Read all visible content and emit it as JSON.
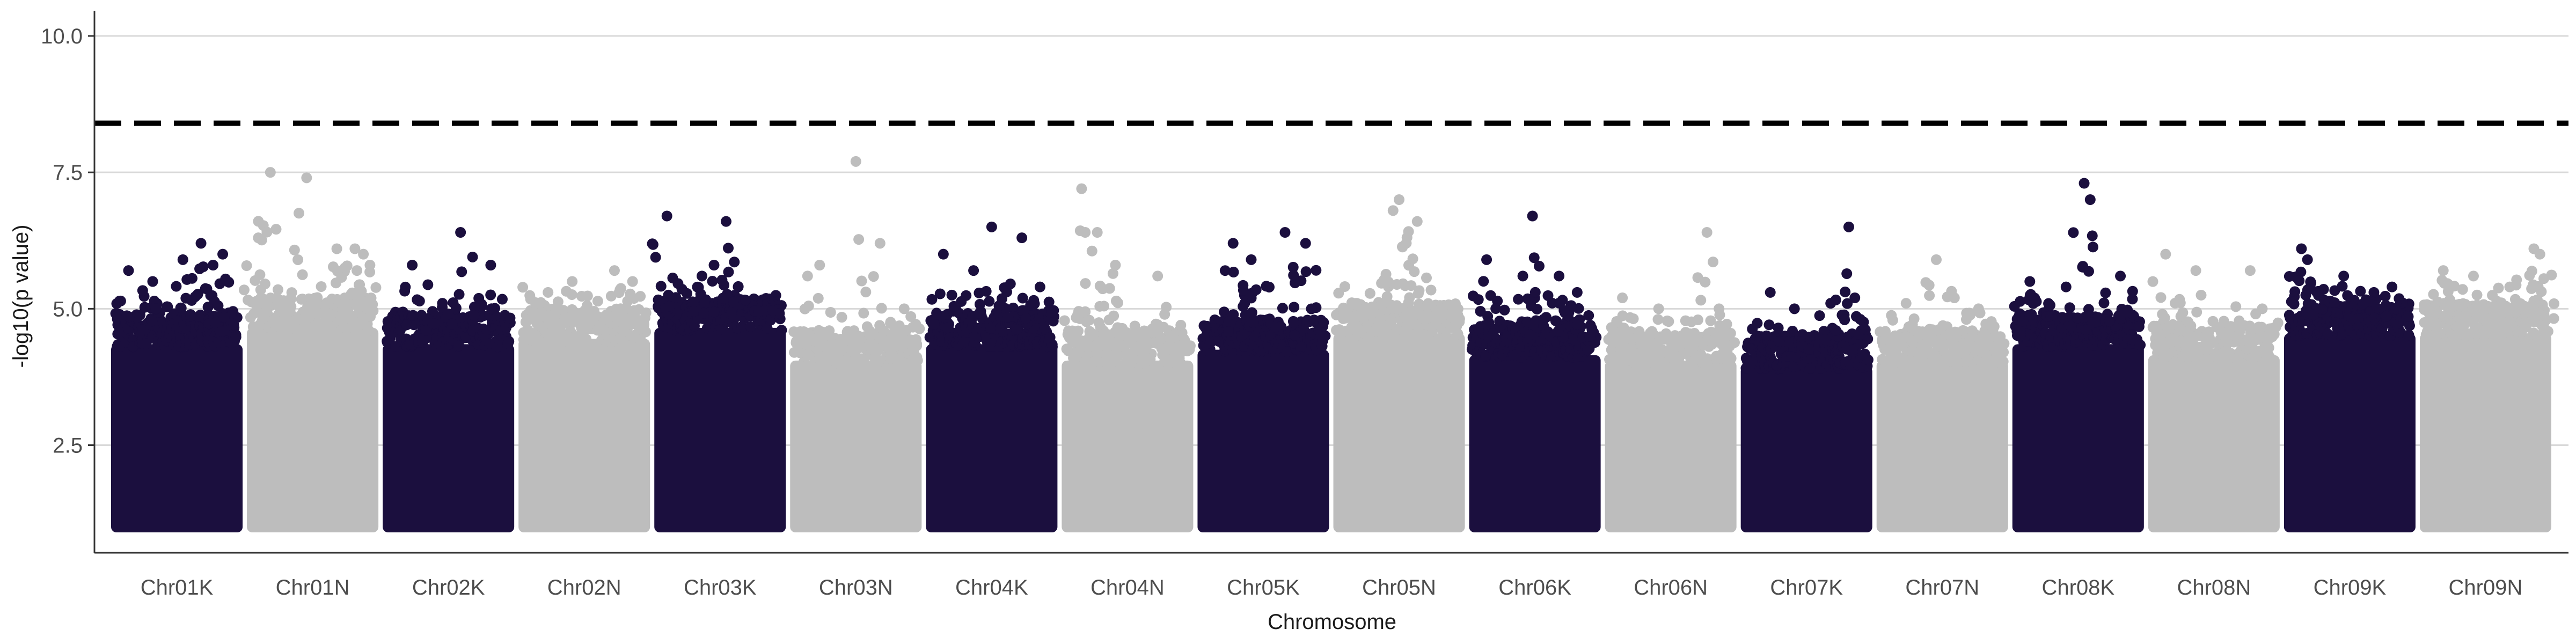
{
  "chart_data": {
    "type": "scatter",
    "subtype": "manhattan",
    "xlabel": "Chromosome",
    "ylabel": "-log10(p value)",
    "ylim": [
      1.0,
      10.0
    ],
    "yticks": [
      2.5,
      5.0,
      7.5,
      10.0
    ],
    "ytick_labels": [
      "2.5",
      "5.0",
      "7.5",
      "10.0"
    ],
    "grid": "horizontal major gridlines",
    "legend": "none",
    "threshold": {
      "value": 8.4,
      "style": "dashed",
      "color": "#000000"
    },
    "colors": {
      "odd": "#1b0f3e",
      "even": "#bdbdbd",
      "grid": "#d9d9d9",
      "axis": "#333333"
    },
    "categories": [
      "Chr01K",
      "Chr01N",
      "Chr02K",
      "Chr02N",
      "Chr03K",
      "Chr03N",
      "Chr04K",
      "Chr04N",
      "Chr05K",
      "Chr05N",
      "Chr06K",
      "Chr06N",
      "Chr07K",
      "Chr07N",
      "Chr08K",
      "Chr08N",
      "Chr09K",
      "Chr09N"
    ],
    "series": [
      {
        "category": "Chr01K",
        "dense_max": 4.6,
        "peaks": [
          [
            0.1,
            5.7
          ],
          [
            0.3,
            5.5
          ],
          [
            0.55,
            5.9
          ],
          [
            0.7,
            6.2
          ],
          [
            0.8,
            5.8
          ],
          [
            0.88,
            6.0
          ]
        ]
      },
      {
        "category": "Chr01N",
        "dense_max": 4.9,
        "peaks": [
          [
            0.05,
            6.3
          ],
          [
            0.15,
            7.5
          ],
          [
            0.45,
            7.4
          ],
          [
            0.7,
            6.1
          ],
          [
            0.85,
            6.1
          ],
          [
            0.92,
            6.0
          ]
        ]
      },
      {
        "category": "Chr02K",
        "dense_max": 4.6,
        "peaks": [
          [
            0.2,
            5.8
          ],
          [
            0.45,
            5.1
          ],
          [
            0.6,
            6.4
          ],
          [
            0.85,
            5.8
          ]
        ]
      },
      {
        "category": "Chr02N",
        "dense_max": 4.7,
        "peaks": [
          [
            0.2,
            5.3
          ],
          [
            0.4,
            5.5
          ],
          [
            0.75,
            5.7
          ],
          [
            0.9,
            5.5
          ]
        ]
      },
      {
        "category": "Chr03K",
        "dense_max": 4.9,
        "peaks": [
          [
            0.06,
            6.7
          ],
          [
            0.35,
            5.6
          ],
          [
            0.45,
            5.8
          ],
          [
            0.55,
            6.6
          ],
          [
            0.65,
            5.4
          ],
          [
            0.9,
            5.0
          ]
        ]
      },
      {
        "category": "Chr03N",
        "dense_max": 4.3,
        "peaks": [
          [
            0.1,
            5.6
          ],
          [
            0.2,
            5.8
          ],
          [
            0.5,
            7.7
          ],
          [
            0.7,
            6.2
          ],
          [
            0.9,
            5.0
          ]
        ]
      },
      {
        "category": "Chr04K",
        "dense_max": 4.6,
        "peaks": [
          [
            0.1,
            6.0
          ],
          [
            0.35,
            5.7
          ],
          [
            0.5,
            6.5
          ],
          [
            0.75,
            6.3
          ],
          [
            0.9,
            5.4
          ]
        ]
      },
      {
        "category": "Chr04N",
        "dense_max": 4.3,
        "peaks": [
          [
            0.12,
            7.2
          ],
          [
            0.15,
            6.4
          ],
          [
            0.25,
            6.4
          ],
          [
            0.4,
            5.8
          ],
          [
            0.75,
            5.6
          ]
        ]
      },
      {
        "category": "Chr05K",
        "dense_max": 4.5,
        "peaks": [
          [
            0.25,
            6.2
          ],
          [
            0.4,
            5.9
          ],
          [
            0.68,
            6.4
          ],
          [
            0.85,
            6.2
          ]
        ]
      },
      {
        "category": "Chr05N",
        "dense_max": 4.8,
        "peaks": [
          [
            0.15,
            5.1
          ],
          [
            0.45,
            6.8
          ],
          [
            0.5,
            7.0
          ],
          [
            0.65,
            6.6
          ],
          [
            0.85,
            5.0
          ]
        ]
      },
      {
        "category": "Chr06K",
        "dense_max": 4.4,
        "peaks": [
          [
            0.1,
            5.9
          ],
          [
            0.4,
            5.6
          ],
          [
            0.48,
            6.7
          ],
          [
            0.7,
            5.6
          ],
          [
            0.85,
            5.3
          ]
        ]
      },
      {
        "category": "Chr06N",
        "dense_max": 4.3,
        "peaks": [
          [
            0.1,
            5.2
          ],
          [
            0.4,
            5.0
          ],
          [
            0.8,
            6.4
          ],
          [
            0.9,
            5.0
          ]
        ]
      },
      {
        "category": "Chr07K",
        "dense_max": 4.2,
        "peaks": [
          [
            0.2,
            5.3
          ],
          [
            0.4,
            5.0
          ],
          [
            0.7,
            5.1
          ],
          [
            0.85,
            6.5
          ],
          [
            0.9,
            5.2
          ]
        ]
      },
      {
        "category": "Chr07N",
        "dense_max": 4.3,
        "peaks": [
          [
            0.2,
            5.1
          ],
          [
            0.45,
            5.9
          ],
          [
            0.6,
            5.2
          ],
          [
            0.8,
            5.0
          ]
        ]
      },
      {
        "category": "Chr08K",
        "dense_max": 4.6,
        "peaks": [
          [
            0.1,
            5.5
          ],
          [
            0.4,
            5.4
          ],
          [
            0.55,
            7.3
          ],
          [
            0.6,
            7.0
          ],
          [
            0.85,
            5.6
          ]
        ]
      },
      {
        "category": "Chr08N",
        "dense_max": 4.4,
        "peaks": [
          [
            0.1,
            6.0
          ],
          [
            0.35,
            5.7
          ],
          [
            0.8,
            5.7
          ],
          [
            0.9,
            5.0
          ]
        ]
      },
      {
        "category": "Chr09K",
        "dense_max": 4.8,
        "peaks": [
          [
            0.1,
            6.1
          ],
          [
            0.15,
            5.9
          ],
          [
            0.45,
            5.6
          ],
          [
            0.7,
            5.3
          ],
          [
            0.85,
            5.4
          ]
        ]
      },
      {
        "category": "Chr09N",
        "dense_max": 4.8,
        "peaks": [
          [
            0.15,
            5.7
          ],
          [
            0.4,
            5.6
          ],
          [
            0.7,
            5.4
          ],
          [
            0.9,
            6.1
          ],
          [
            0.95,
            6.0
          ]
        ]
      }
    ]
  }
}
